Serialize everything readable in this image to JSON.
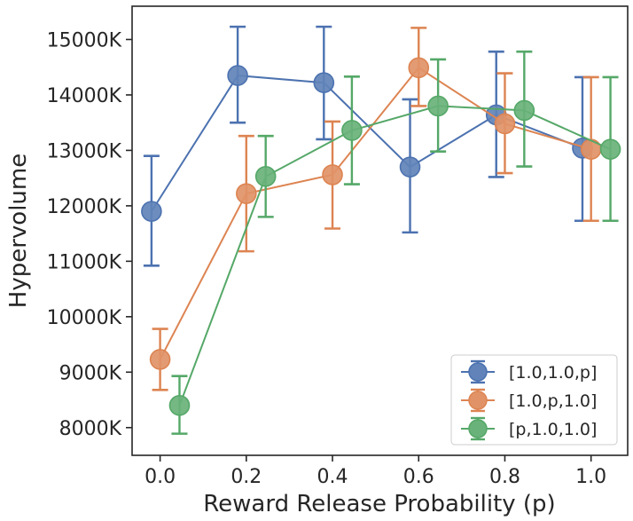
{
  "chart_data": {
    "type": "line",
    "title": "",
    "xlabel": "Reward Release Probability (p)",
    "ylabel": "Hypervolume",
    "xlim": [
      -0.065,
      1.085
    ],
    "ylim": [
      7500,
      15600
    ],
    "xticks": [
      0.0,
      0.2,
      0.4,
      0.6,
      0.8,
      1.0
    ],
    "xtick_labels": [
      "0.0",
      "0.2",
      "0.4",
      "0.6",
      "0.8",
      "1.0"
    ],
    "yticks": [
      8000,
      9000,
      10000,
      11000,
      12000,
      13000,
      14000,
      15000
    ],
    "ytick_labels": [
      "8000K",
      "9000K",
      "10000K",
      "11000K",
      "12000K",
      "13000K",
      "14000K",
      "15000K"
    ],
    "grid": false,
    "legend_position": "lower-right",
    "series": [
      {
        "name": "[1.0,1.0,p]",
        "color": "#4c72b0",
        "x": [
          -0.02,
          0.18,
          0.38,
          0.58,
          0.78,
          0.98
        ],
        "values": [
          11900,
          14350,
          14220,
          12700,
          13640,
          13040
        ],
        "err_low": [
          10920,
          13500,
          13200,
          11520,
          12520,
          11730
        ],
        "err_high": [
          12900,
          15230,
          15230,
          13920,
          14780,
          14320
        ]
      },
      {
        "name": "[1.0,p,1.0]",
        "color": "#dd8452",
        "x": [
          0.0,
          0.2,
          0.4,
          0.6,
          0.8,
          1.0
        ],
        "values": [
          9230,
          12220,
          12560,
          14490,
          13480,
          13020
        ],
        "err_low": [
          8680,
          11180,
          11590,
          13800,
          12590,
          11730
        ],
        "err_high": [
          9780,
          13260,
          13520,
          15210,
          14390,
          14320
        ]
      },
      {
        "name": "[p,1.0,1.0]",
        "color": "#55a868",
        "x": [
          0.045,
          0.245,
          0.445,
          0.645,
          0.845,
          1.045
        ],
        "values": [
          8400,
          12530,
          13360,
          13800,
          13720,
          13020
        ],
        "err_low": [
          7890,
          11800,
          12390,
          12980,
          12710,
          11730
        ],
        "err_high": [
          8930,
          13260,
          14330,
          14640,
          14780,
          14320
        ]
      }
    ]
  }
}
